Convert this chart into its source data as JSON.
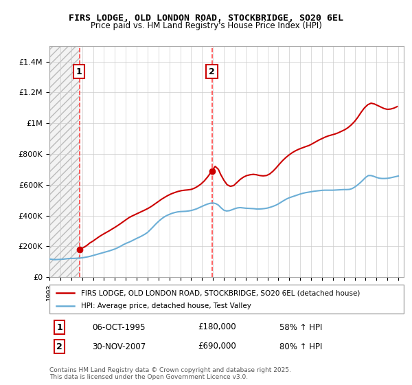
{
  "title": "FIRS LODGE, OLD LONDON ROAD, STOCKBRIDGE, SO20 6EL",
  "subtitle": "Price paid vs. HM Land Registry's House Price Index (HPI)",
  "legend_line1": "FIRS LODGE, OLD LONDON ROAD, STOCKBRIDGE, SO20 6EL (detached house)",
  "legend_line2": "HPI: Average price, detached house, Test Valley",
  "annotation1_label": "1",
  "annotation1_date": "06-OCT-1995",
  "annotation1_price": "£180,000",
  "annotation1_hpi": "58% ↑ HPI",
  "annotation2_label": "2",
  "annotation2_date": "30-NOV-2007",
  "annotation2_price": "£690,000",
  "annotation2_hpi": "80% ↑ HPI",
  "footnote": "Contains HM Land Registry data © Crown copyright and database right 2025.\nThis data is licensed under the Open Government Licence v3.0.",
  "hpi_line_color": "#6baed6",
  "price_line_color": "#cc0000",
  "vline_color": "#ff4444",
  "marker1_x": 1995.75,
  "marker1_y": 180000,
  "marker2_x": 2007.92,
  "marker2_y": 690000,
  "ylim": [
    0,
    1500000
  ],
  "xlim_start": 1993,
  "xlim_end": 2025.5,
  "background_hatch_color": "#d0d0d0",
  "hpi_data_x": [
    1993.0,
    1993.25,
    1993.5,
    1993.75,
    1994.0,
    1994.25,
    1994.5,
    1994.75,
    1995.0,
    1995.25,
    1995.5,
    1995.75,
    1996.0,
    1996.25,
    1996.5,
    1996.75,
    1997.0,
    1997.25,
    1997.5,
    1997.75,
    1998.0,
    1998.25,
    1998.5,
    1998.75,
    1999.0,
    1999.25,
    1999.5,
    1999.75,
    2000.0,
    2000.25,
    2000.5,
    2000.75,
    2001.0,
    2001.25,
    2001.5,
    2001.75,
    2002.0,
    2002.25,
    2002.5,
    2002.75,
    2003.0,
    2003.25,
    2003.5,
    2003.75,
    2004.0,
    2004.25,
    2004.5,
    2004.75,
    2005.0,
    2005.25,
    2005.5,
    2005.75,
    2006.0,
    2006.25,
    2006.5,
    2006.75,
    2007.0,
    2007.25,
    2007.5,
    2007.75,
    2008.0,
    2008.25,
    2008.5,
    2008.75,
    2009.0,
    2009.25,
    2009.5,
    2009.75,
    2010.0,
    2010.25,
    2010.5,
    2010.75,
    2011.0,
    2011.25,
    2011.5,
    2011.75,
    2012.0,
    2012.25,
    2012.5,
    2012.75,
    2013.0,
    2013.25,
    2013.5,
    2013.75,
    2014.0,
    2014.25,
    2014.5,
    2014.75,
    2015.0,
    2015.25,
    2015.5,
    2015.75,
    2016.0,
    2016.25,
    2016.5,
    2016.75,
    2017.0,
    2017.25,
    2017.5,
    2017.75,
    2018.0,
    2018.25,
    2018.5,
    2018.75,
    2019.0,
    2019.25,
    2019.5,
    2019.75,
    2020.0,
    2020.25,
    2020.5,
    2020.75,
    2021.0,
    2021.25,
    2021.5,
    2021.75,
    2022.0,
    2022.25,
    2022.5,
    2022.75,
    2023.0,
    2023.25,
    2023.5,
    2023.75,
    2024.0,
    2024.25,
    2024.5,
    2024.75,
    2025.0
  ],
  "hpi_data_y": [
    118000,
    116000,
    114000,
    115000,
    116000,
    117000,
    119000,
    121000,
    122000,
    122000,
    123000,
    124000,
    126000,
    129000,
    132000,
    136000,
    141000,
    146000,
    151000,
    156000,
    161000,
    166000,
    171000,
    177000,
    183000,
    191000,
    200000,
    210000,
    219000,
    226000,
    234000,
    243000,
    252000,
    260000,
    269000,
    279000,
    291000,
    308000,
    326000,
    345000,
    362000,
    377000,
    390000,
    400000,
    408000,
    415000,
    420000,
    424000,
    426000,
    427000,
    428000,
    430000,
    433000,
    438000,
    444000,
    452000,
    460000,
    468000,
    475000,
    480000,
    482000,
    478000,
    468000,
    450000,
    435000,
    430000,
    432000,
    438000,
    445000,
    450000,
    452000,
    450000,
    448000,
    447000,
    446000,
    445000,
    443000,
    443000,
    444000,
    446000,
    449000,
    454000,
    460000,
    467000,
    476000,
    487000,
    498000,
    508000,
    516000,
    522000,
    528000,
    534000,
    540000,
    545000,
    549000,
    552000,
    555000,
    558000,
    560000,
    562000,
    564000,
    565000,
    565000,
    565000,
    565000,
    566000,
    567000,
    568000,
    569000,
    569000,
    570000,
    575000,
    585000,
    598000,
    613000,
    630000,
    648000,
    660000,
    660000,
    655000,
    648000,
    643000,
    641000,
    641000,
    642000,
    645000,
    649000,
    653000,
    657000
  ],
  "price_data_x": [
    1995.75,
    1995.9,
    1996.1,
    1996.3,
    1996.5,
    1996.7,
    1997.0,
    1997.3,
    1997.6,
    1997.9,
    1998.2,
    1998.5,
    1998.8,
    1999.1,
    1999.4,
    1999.7,
    2000.0,
    2000.3,
    2000.6,
    2000.9,
    2001.2,
    2001.5,
    2001.8,
    2002.1,
    2002.4,
    2002.7,
    2003.0,
    2003.3,
    2003.6,
    2003.9,
    2004.2,
    2004.5,
    2004.8,
    2005.1,
    2005.4,
    2005.7,
    2006.0,
    2006.3,
    2006.6,
    2006.9,
    2007.2,
    2007.5,
    2007.75,
    2007.92,
    2008.2,
    2008.5,
    2008.7,
    2009.0,
    2009.3,
    2009.6,
    2009.9,
    2010.2,
    2010.5,
    2010.8,
    2011.1,
    2011.4,
    2011.7,
    2012.0,
    2012.3,
    2012.6,
    2012.9,
    2013.2,
    2013.5,
    2013.8,
    2014.1,
    2014.4,
    2014.7,
    2015.0,
    2015.3,
    2015.6,
    2015.9,
    2016.2,
    2016.5,
    2016.8,
    2017.1,
    2017.4,
    2017.7,
    2018.0,
    2018.3,
    2018.6,
    2018.9,
    2019.2,
    2019.5,
    2019.8,
    2020.1,
    2020.4,
    2020.7,
    2021.0,
    2021.3,
    2021.6,
    2021.9,
    2022.2,
    2022.5,
    2022.8,
    2023.1,
    2023.4,
    2023.7,
    2024.0,
    2024.3,
    2024.6,
    2024.9
  ],
  "price_data_y": [
    180000,
    185000,
    192000,
    200000,
    210000,
    222000,
    235000,
    250000,
    265000,
    278000,
    290000,
    302000,
    315000,
    328000,
    342000,
    357000,
    372000,
    387000,
    398000,
    408000,
    418000,
    428000,
    438000,
    449000,
    462000,
    477000,
    492000,
    507000,
    520000,
    532000,
    542000,
    550000,
    557000,
    562000,
    565000,
    567000,
    570000,
    578000,
    590000,
    605000,
    625000,
    650000,
    675000,
    690000,
    720000,
    700000,
    668000,
    630000,
    600000,
    590000,
    595000,
    615000,
    635000,
    650000,
    660000,
    665000,
    668000,
    665000,
    660000,
    658000,
    660000,
    670000,
    688000,
    710000,
    735000,
    758000,
    778000,
    795000,
    810000,
    822000,
    832000,
    840000,
    848000,
    855000,
    866000,
    878000,
    890000,
    900000,
    910000,
    918000,
    924000,
    930000,
    938000,
    948000,
    958000,
    972000,
    990000,
    1012000,
    1040000,
    1072000,
    1100000,
    1120000,
    1130000,
    1125000,
    1115000,
    1105000,
    1095000,
    1090000,
    1092000,
    1098000,
    1108000
  ]
}
